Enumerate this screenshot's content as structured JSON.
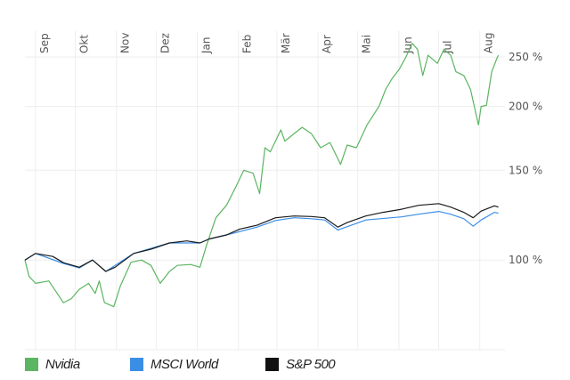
{
  "chart_data": {
    "type": "line",
    "title": "",
    "xlabel": "",
    "ylabel": "",
    "y_scale": "log",
    "ylim": [
      66.7,
      281
    ],
    "xlim": [
      "2023-08-24",
      "2024-08-20"
    ],
    "grid": true,
    "legend_placement": "bottom-left",
    "x_ticks": [
      {
        "date": "2023-09-01",
        "label": "Sep"
      },
      {
        "date": "2023-10-01",
        "label": "Okt"
      },
      {
        "date": "2023-11-01",
        "label": "Nov"
      },
      {
        "date": "2023-12-01",
        "label": "Dez"
      },
      {
        "date": "2024-01-01",
        "label": "Jan"
      },
      {
        "date": "2024-02-01",
        "label": "Feb"
      },
      {
        "date": "2024-03-01",
        "label": "Mär"
      },
      {
        "date": "2024-04-01",
        "label": "Apr"
      },
      {
        "date": "2024-05-01",
        "label": "Mai"
      },
      {
        "date": "2024-06-01",
        "label": "Jun"
      },
      {
        "date": "2024-07-01",
        "label": "Jul"
      },
      {
        "date": "2024-08-01",
        "label": "Aug"
      }
    ],
    "y_ticks": [
      {
        "value": 66.7,
        "label": ""
      },
      {
        "value": 100,
        "label": "100 %"
      },
      {
        "value": 150,
        "label": "150 %"
      },
      {
        "value": 200,
        "label": "200 %"
      },
      {
        "value": 250,
        "label": "250 %"
      }
    ],
    "series": [
      {
        "name": "Nvidia",
        "color": "#5cb562",
        "points": [
          [
            "2023-08-24",
            100
          ],
          [
            "2023-08-27",
            93
          ],
          [
            "2023-09-01",
            90
          ],
          [
            "2023-09-11",
            91
          ],
          [
            "2023-09-22",
            82.5
          ],
          [
            "2023-09-28",
            84
          ],
          [
            "2023-10-04",
            87.6
          ],
          [
            "2023-10-11",
            90
          ],
          [
            "2023-10-16",
            86
          ],
          [
            "2023-10-19",
            91
          ],
          [
            "2023-10-23",
            82.5
          ],
          [
            "2023-10-30",
            81
          ],
          [
            "2023-11-04",
            89
          ],
          [
            "2023-11-12",
            99
          ],
          [
            "2023-11-20",
            100
          ],
          [
            "2023-11-27",
            97.6
          ],
          [
            "2023-12-04",
            90
          ],
          [
            "2023-12-11",
            95
          ],
          [
            "2023-12-17",
            97.6
          ],
          [
            "2023-12-27",
            98
          ],
          [
            "2024-01-03",
            96.8
          ],
          [
            "2024-01-08",
            107
          ],
          [
            "2024-01-15",
            121
          ],
          [
            "2024-01-23",
            128
          ],
          [
            "2024-01-30",
            139
          ],
          [
            "2024-02-05",
            150
          ],
          [
            "2024-02-12",
            148
          ],
          [
            "2024-02-17",
            135
          ],
          [
            "2024-02-21",
            166
          ],
          [
            "2024-02-25",
            163
          ],
          [
            "2024-03-04",
            180
          ],
          [
            "2024-03-07",
            171
          ],
          [
            "2024-03-14",
            177
          ],
          [
            "2024-03-20",
            182
          ],
          [
            "2024-03-27",
            177
          ],
          [
            "2024-04-03",
            166
          ],
          [
            "2024-04-10",
            170
          ],
          [
            "2024-04-18",
            154
          ],
          [
            "2024-04-23",
            168
          ],
          [
            "2024-04-30",
            166
          ],
          [
            "2024-05-08",
            184
          ],
          [
            "2024-05-17",
            200
          ],
          [
            "2024-05-22",
            216
          ],
          [
            "2024-05-27",
            227
          ],
          [
            "2024-06-01",
            236
          ],
          [
            "2024-06-06",
            249
          ],
          [
            "2024-06-11",
            266
          ],
          [
            "2024-06-15",
            259
          ],
          [
            "2024-06-19",
            230
          ],
          [
            "2024-06-23",
            252
          ],
          [
            "2024-06-30",
            243
          ],
          [
            "2024-07-05",
            259
          ],
          [
            "2024-07-10",
            252
          ],
          [
            "2024-07-14",
            234
          ],
          [
            "2024-07-20",
            230
          ],
          [
            "2024-07-25",
            216
          ],
          [
            "2024-07-31",
            184
          ],
          [
            "2024-08-02",
            200
          ],
          [
            "2024-08-06",
            201
          ],
          [
            "2024-08-10",
            234
          ],
          [
            "2024-08-14",
            249
          ],
          [
            "2024-08-15",
            252
          ]
        ]
      },
      {
        "name": "MSCI World",
        "color": "#3b8ee6",
        "points": [
          [
            "2023-08-24",
            100
          ],
          [
            "2023-09-01",
            103
          ],
          [
            "2023-09-22",
            98.5
          ],
          [
            "2023-10-04",
            96.5
          ],
          [
            "2023-10-14",
            100
          ],
          [
            "2023-10-24",
            95
          ],
          [
            "2023-11-14",
            103
          ],
          [
            "2023-12-11",
            108
          ],
          [
            "2024-01-03",
            108
          ],
          [
            "2024-01-10",
            110
          ],
          [
            "2024-01-23",
            112
          ],
          [
            "2024-02-15",
            116
          ],
          [
            "2024-02-29",
            119.5
          ],
          [
            "2024-03-14",
            121
          ],
          [
            "2024-03-27",
            120.5
          ],
          [
            "2024-04-06",
            119.8
          ],
          [
            "2024-04-16",
            114.5
          ],
          [
            "2024-05-07",
            119.8
          ],
          [
            "2024-06-03",
            121.5
          ],
          [
            "2024-06-16",
            123
          ],
          [
            "2024-07-01",
            124.5
          ],
          [
            "2024-07-10",
            123
          ],
          [
            "2024-07-20",
            120.5
          ],
          [
            "2024-07-27",
            116.5
          ],
          [
            "2024-08-02",
            119.8
          ],
          [
            "2024-08-12",
            124
          ],
          [
            "2024-08-15",
            123.5
          ]
        ]
      },
      {
        "name": "S&P 500",
        "color": "#1a1a1a",
        "points": [
          [
            "2023-08-24",
            100
          ],
          [
            "2023-09-01",
            103
          ],
          [
            "2023-09-14",
            101.6
          ],
          [
            "2023-09-22",
            98.8
          ],
          [
            "2023-10-04",
            96.8
          ],
          [
            "2023-10-14",
            100
          ],
          [
            "2023-10-24",
            95
          ],
          [
            "2023-10-31",
            96.8
          ],
          [
            "2023-11-14",
            103
          ],
          [
            "2023-11-27",
            105
          ],
          [
            "2023-12-11",
            108
          ],
          [
            "2023-12-24",
            109
          ],
          [
            "2024-01-03",
            108
          ],
          [
            "2024-01-10",
            110
          ],
          [
            "2024-01-23",
            112
          ],
          [
            "2024-02-02",
            115
          ],
          [
            "2024-02-15",
            117
          ],
          [
            "2024-02-29",
            121
          ],
          [
            "2024-03-14",
            122
          ],
          [
            "2024-03-27",
            121.7
          ],
          [
            "2024-04-06",
            121
          ],
          [
            "2024-04-16",
            116
          ],
          [
            "2024-04-23",
            118.4
          ],
          [
            "2024-05-07",
            122
          ],
          [
            "2024-05-20",
            124
          ],
          [
            "2024-06-03",
            125.8
          ],
          [
            "2024-06-16",
            128
          ],
          [
            "2024-07-01",
            129
          ],
          [
            "2024-07-10",
            127
          ],
          [
            "2024-07-20",
            124
          ],
          [
            "2024-07-27",
            121
          ],
          [
            "2024-08-02",
            124.7
          ],
          [
            "2024-08-12",
            127.7
          ],
          [
            "2024-08-15",
            127
          ]
        ]
      }
    ]
  }
}
